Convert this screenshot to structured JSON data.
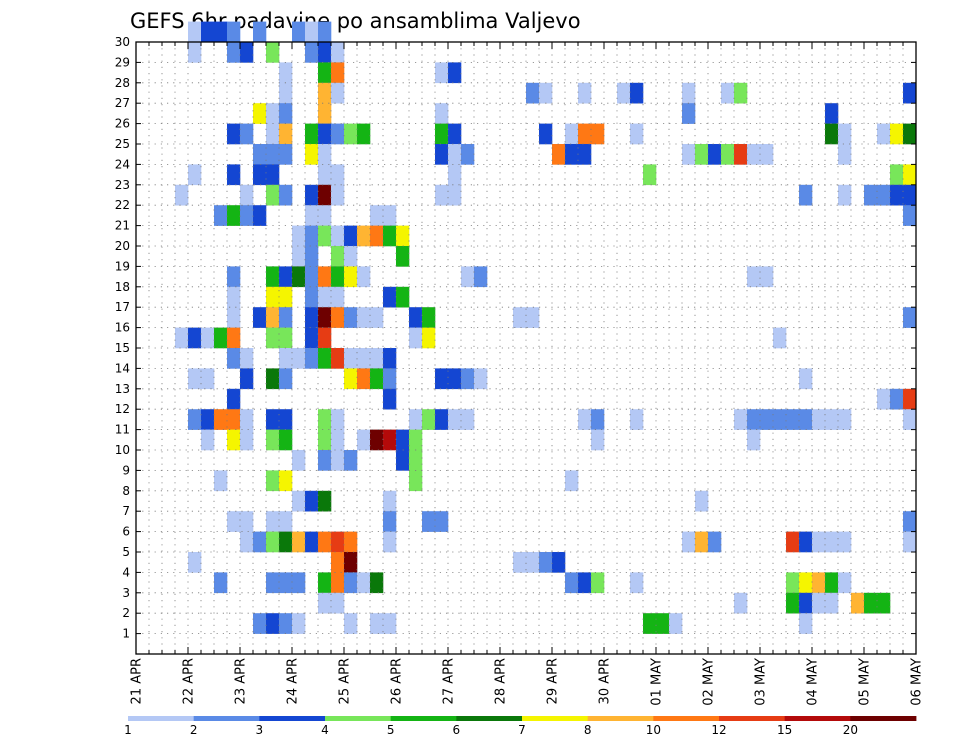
{
  "chart_data": {
    "type": "heatmap",
    "title": "GEFS 6hr padavine po ansamblima Valjevo",
    "x_tick_labels": [
      "21 APR",
      "22 APR",
      "23 APR",
      "24 APR",
      "25 APR",
      "26 APR",
      "27 APR",
      "28 APR",
      "29 APR",
      "30 APR",
      "01 MAY",
      "02 MAY",
      "03 MAY",
      "04 MAY",
      "05 MAY",
      "06 MAY"
    ],
    "y_tick_labels": [
      "1",
      "2",
      "3",
      "4",
      "5",
      "6",
      "7",
      "8",
      "9",
      "10",
      "11",
      "12",
      "13",
      "14",
      "15",
      "16",
      "17",
      "18",
      "19",
      "20",
      "21",
      "22",
      "23",
      "24",
      "25",
      "26",
      "27",
      "28",
      "29",
      "30"
    ],
    "xlim": [
      0,
      60
    ],
    "ylim": [
      0,
      30
    ],
    "grid": true,
    "legend": {
      "placement": "bottom",
      "levels": [
        "1",
        "2",
        "3",
        "4",
        "5",
        "6",
        "7",
        "8",
        "10",
        "12",
        "15",
        "20"
      ],
      "colors": [
        "#b4c8f5",
        "#5a8ae6",
        "#1446d2",
        "#78e65a",
        "#14b414",
        "#0a780a",
        "#f5f500",
        "#ffb432",
        "#ff7814",
        "#e63c14",
        "#b40a0a",
        "#6e0000"
      ]
    },
    "cells": [
      [
        4,
        30,
        0
      ],
      [
        5,
        30,
        2
      ],
      [
        6,
        30,
        2
      ],
      [
        7,
        30,
        1
      ],
      [
        9,
        30,
        1
      ],
      [
        12,
        30,
        1
      ],
      [
        13,
        30,
        0
      ],
      [
        14,
        30,
        1
      ],
      [
        4,
        29,
        0
      ],
      [
        7,
        29,
        1
      ],
      [
        8,
        29,
        2
      ],
      [
        10,
        29,
        3
      ],
      [
        13,
        29,
        1
      ],
      [
        14,
        29,
        2
      ],
      [
        15,
        29,
        0
      ],
      [
        11,
        28,
        0
      ],
      [
        14,
        28,
        4
      ],
      [
        15,
        28,
        8
      ],
      [
        23,
        28,
        0
      ],
      [
        24,
        28,
        2
      ],
      [
        11,
        27,
        0
      ],
      [
        14,
        27,
        7
      ],
      [
        15,
        27,
        0
      ],
      [
        30,
        27,
        1
      ],
      [
        31,
        27,
        0
      ],
      [
        34,
        27,
        0
      ],
      [
        37,
        27,
        0
      ],
      [
        38,
        27,
        2
      ],
      [
        42,
        27,
        0
      ],
      [
        45,
        27,
        0
      ],
      [
        46,
        27,
        3
      ],
      [
        59,
        27,
        2
      ],
      [
        9,
        26,
        6
      ],
      [
        10,
        26,
        0
      ],
      [
        11,
        26,
        1
      ],
      [
        14,
        26,
        7
      ],
      [
        23,
        26,
        0
      ],
      [
        42,
        26,
        1
      ],
      [
        53,
        26,
        2
      ],
      [
        7,
        25,
        2
      ],
      [
        8,
        25,
        1
      ],
      [
        10,
        25,
        0
      ],
      [
        11,
        25,
        7
      ],
      [
        13,
        25,
        4
      ],
      [
        14,
        25,
        2
      ],
      [
        15,
        25,
        1
      ],
      [
        16,
        25,
        3
      ],
      [
        17,
        25,
        4
      ],
      [
        23,
        25,
        4
      ],
      [
        24,
        25,
        2
      ],
      [
        31,
        25,
        2
      ],
      [
        33,
        25,
        0
      ],
      [
        34,
        25,
        8
      ],
      [
        35,
        25,
        8
      ],
      [
        38,
        25,
        0
      ],
      [
        53,
        25,
        5
      ],
      [
        54,
        25,
        0
      ],
      [
        57,
        25,
        0
      ],
      [
        58,
        25,
        6
      ],
      [
        59,
        25,
        5
      ],
      [
        9,
        24,
        1
      ],
      [
        10,
        24,
        1
      ],
      [
        11,
        24,
        1
      ],
      [
        13,
        24,
        6
      ],
      [
        14,
        24,
        0
      ],
      [
        23,
        24,
        2
      ],
      [
        24,
        24,
        0
      ],
      [
        25,
        24,
        1
      ],
      [
        32,
        24,
        8
      ],
      [
        33,
        24,
        2
      ],
      [
        34,
        24,
        2
      ],
      [
        42,
        24,
        0
      ],
      [
        43,
        24,
        3
      ],
      [
        44,
        24,
        2
      ],
      [
        45,
        24,
        3
      ],
      [
        46,
        24,
        9
      ],
      [
        47,
        24,
        0
      ],
      [
        48,
        24,
        0
      ],
      [
        54,
        24,
        0
      ],
      [
        4,
        23,
        0
      ],
      [
        7,
        23,
        2
      ],
      [
        9,
        23,
        2
      ],
      [
        10,
        23,
        2
      ],
      [
        14,
        23,
        0
      ],
      [
        15,
        23,
        0
      ],
      [
        24,
        23,
        0
      ],
      [
        39,
        23,
        3
      ],
      [
        58,
        23,
        3
      ],
      [
        59,
        23,
        6
      ],
      [
        3,
        22,
        0
      ],
      [
        8,
        22,
        0
      ],
      [
        10,
        22,
        3
      ],
      [
        11,
        22,
        1
      ],
      [
        13,
        22,
        2
      ],
      [
        14,
        22,
        11
      ],
      [
        15,
        22,
        0
      ],
      [
        23,
        22,
        0
      ],
      [
        24,
        22,
        0
      ],
      [
        51,
        22,
        1
      ],
      [
        54,
        22,
        0
      ],
      [
        56,
        22,
        1
      ],
      [
        57,
        22,
        1
      ],
      [
        58,
        22,
        2
      ],
      [
        59,
        22,
        2
      ],
      [
        6,
        21,
        1
      ],
      [
        7,
        21,
        4
      ],
      [
        8,
        21,
        1
      ],
      [
        9,
        21,
        2
      ],
      [
        13,
        21,
        0
      ],
      [
        14,
        21,
        0
      ],
      [
        18,
        21,
        0
      ],
      [
        19,
        21,
        0
      ],
      [
        59,
        21,
        1
      ],
      [
        12,
        20,
        0
      ],
      [
        13,
        20,
        1
      ],
      [
        14,
        20,
        3
      ],
      [
        15,
        20,
        0
      ],
      [
        16,
        20,
        2
      ],
      [
        17,
        20,
        7
      ],
      [
        18,
        20,
        8
      ],
      [
        19,
        20,
        4
      ],
      [
        20,
        20,
        6
      ],
      [
        12,
        19,
        0
      ],
      [
        13,
        19,
        1
      ],
      [
        15,
        19,
        3
      ],
      [
        16,
        19,
        0
      ],
      [
        20,
        19,
        4
      ],
      [
        7,
        18,
        1
      ],
      [
        10,
        18,
        4
      ],
      [
        11,
        18,
        2
      ],
      [
        12,
        18,
        5
      ],
      [
        13,
        18,
        1
      ],
      [
        14,
        18,
        8
      ],
      [
        15,
        18,
        4
      ],
      [
        16,
        18,
        6
      ],
      [
        17,
        18,
        0
      ],
      [
        25,
        18,
        0
      ],
      [
        26,
        18,
        1
      ],
      [
        47,
        18,
        0
      ],
      [
        48,
        18,
        0
      ],
      [
        7,
        17,
        0
      ],
      [
        10,
        17,
        6
      ],
      [
        11,
        17,
        6
      ],
      [
        13,
        17,
        1
      ],
      [
        14,
        17,
        0
      ],
      [
        15,
        17,
        0
      ],
      [
        19,
        17,
        2
      ],
      [
        20,
        17,
        4
      ],
      [
        7,
        16,
        0
      ],
      [
        9,
        16,
        2
      ],
      [
        10,
        16,
        7
      ],
      [
        11,
        16,
        1
      ],
      [
        13,
        16,
        2
      ],
      [
        14,
        16,
        11
      ],
      [
        15,
        16,
        8
      ],
      [
        16,
        16,
        1
      ],
      [
        17,
        16,
        0
      ],
      [
        18,
        16,
        0
      ],
      [
        21,
        16,
        2
      ],
      [
        22,
        16,
        4
      ],
      [
        29,
        16,
        0
      ],
      [
        30,
        16,
        0
      ],
      [
        59,
        16,
        1
      ],
      [
        3,
        15,
        0
      ],
      [
        4,
        15,
        2
      ],
      [
        5,
        15,
        0
      ],
      [
        6,
        15,
        4
      ],
      [
        7,
        15,
        8
      ],
      [
        10,
        15,
        3
      ],
      [
        11,
        15,
        3
      ],
      [
        13,
        15,
        2
      ],
      [
        14,
        15,
        9
      ],
      [
        21,
        15,
        0
      ],
      [
        22,
        15,
        6
      ],
      [
        49,
        15,
        0
      ],
      [
        7,
        14,
        1
      ],
      [
        8,
        14,
        0
      ],
      [
        11,
        14,
        0
      ],
      [
        12,
        14,
        0
      ],
      [
        13,
        14,
        1
      ],
      [
        14,
        14,
        4
      ],
      [
        15,
        14,
        9
      ],
      [
        16,
        14,
        0
      ],
      [
        17,
        14,
        0
      ],
      [
        18,
        14,
        0
      ],
      [
        19,
        14,
        2
      ],
      [
        4,
        13,
        0
      ],
      [
        5,
        13,
        0
      ],
      [
        8,
        13,
        2
      ],
      [
        10,
        13,
        5
      ],
      [
        11,
        13,
        1
      ],
      [
        16,
        13,
        6
      ],
      [
        17,
        13,
        8
      ],
      [
        18,
        13,
        4
      ],
      [
        19,
        13,
        1
      ],
      [
        23,
        13,
        2
      ],
      [
        24,
        13,
        2
      ],
      [
        25,
        13,
        1
      ],
      [
        26,
        13,
        0
      ],
      [
        51,
        13,
        0
      ],
      [
        7,
        12,
        2
      ],
      [
        19,
        12,
        2
      ],
      [
        57,
        12,
        0
      ],
      [
        58,
        12,
        1
      ],
      [
        59,
        12,
        9
      ],
      [
        4,
        11,
        1
      ],
      [
        5,
        11,
        2
      ],
      [
        6,
        11,
        8
      ],
      [
        7,
        11,
        8
      ],
      [
        8,
        11,
        0
      ],
      [
        10,
        11,
        2
      ],
      [
        11,
        11,
        2
      ],
      [
        14,
        11,
        3
      ],
      [
        15,
        11,
        0
      ],
      [
        21,
        11,
        0
      ],
      [
        22,
        11,
        3
      ],
      [
        23,
        11,
        2
      ],
      [
        24,
        11,
        0
      ],
      [
        25,
        11,
        0
      ],
      [
        34,
        11,
        0
      ],
      [
        35,
        11,
        1
      ],
      [
        38,
        11,
        0
      ],
      [
        46,
        11,
        0
      ],
      [
        47,
        11,
        1
      ],
      [
        48,
        11,
        1
      ],
      [
        49,
        11,
        1
      ],
      [
        50,
        11,
        1
      ],
      [
        51,
        11,
        1
      ],
      [
        52,
        11,
        0
      ],
      [
        53,
        11,
        0
      ],
      [
        54,
        11,
        0
      ],
      [
        59,
        11,
        0
      ],
      [
        5,
        10,
        0
      ],
      [
        7,
        10,
        6
      ],
      [
        8,
        10,
        0
      ],
      [
        10,
        10,
        3
      ],
      [
        11,
        10,
        4
      ],
      [
        14,
        10,
        3
      ],
      [
        15,
        10,
        0
      ],
      [
        17,
        10,
        0
      ],
      [
        18,
        10,
        11
      ],
      [
        19,
        10,
        10
      ],
      [
        20,
        10,
        2
      ],
      [
        21,
        10,
        3
      ],
      [
        35,
        10,
        0
      ],
      [
        47,
        10,
        0
      ],
      [
        12,
        9,
        0
      ],
      [
        14,
        9,
        1
      ],
      [
        15,
        9,
        0
      ],
      [
        16,
        9,
        1
      ],
      [
        20,
        9,
        2
      ],
      [
        21,
        9,
        3
      ],
      [
        6,
        8,
        0
      ],
      [
        10,
        8,
        3
      ],
      [
        11,
        8,
        6
      ],
      [
        21,
        8,
        3
      ],
      [
        33,
        8,
        0
      ],
      [
        12,
        7,
        0
      ],
      [
        13,
        7,
        2
      ],
      [
        14,
        7,
        5
      ],
      [
        19,
        7,
        0
      ],
      [
        43,
        7,
        0
      ],
      [
        7,
        6,
        0
      ],
      [
        8,
        6,
        0
      ],
      [
        10,
        6,
        0
      ],
      [
        11,
        6,
        0
      ],
      [
        19,
        6,
        1
      ],
      [
        22,
        6,
        1
      ],
      [
        23,
        6,
        1
      ],
      [
        59,
        6,
        1
      ],
      [
        8,
        5,
        0
      ],
      [
        9,
        5,
        1
      ],
      [
        10,
        5,
        3
      ],
      [
        11,
        5,
        5
      ],
      [
        12,
        5,
        7
      ],
      [
        13,
        5,
        2
      ],
      [
        14,
        5,
        8
      ],
      [
        15,
        5,
        9
      ],
      [
        16,
        5,
        8
      ],
      [
        19,
        5,
        0
      ],
      [
        42,
        5,
        0
      ],
      [
        43,
        5,
        7
      ],
      [
        44,
        5,
        1
      ],
      [
        50,
        5,
        9
      ],
      [
        51,
        5,
        2
      ],
      [
        52,
        5,
        0
      ],
      [
        53,
        5,
        0
      ],
      [
        54,
        5,
        0
      ],
      [
        59,
        5,
        0
      ],
      [
        4,
        4,
        0
      ],
      [
        15,
        4,
        8
      ],
      [
        16,
        4,
        11
      ],
      [
        29,
        4,
        0
      ],
      [
        30,
        4,
        0
      ],
      [
        31,
        4,
        1
      ],
      [
        32,
        4,
        2
      ],
      [
        6,
        3,
        1
      ],
      [
        10,
        3,
        1
      ],
      [
        11,
        3,
        1
      ],
      [
        12,
        3,
        1
      ],
      [
        14,
        3,
        4
      ],
      [
        15,
        3,
        8
      ],
      [
        16,
        3,
        1
      ],
      [
        17,
        3,
        0
      ],
      [
        18,
        3,
        5
      ],
      [
        33,
        3,
        1
      ],
      [
        34,
        3,
        2
      ],
      [
        35,
        3,
        3
      ],
      [
        38,
        3,
        0
      ],
      [
        50,
        3,
        3
      ],
      [
        51,
        3,
        6
      ],
      [
        52,
        3,
        7
      ],
      [
        53,
        3,
        4
      ],
      [
        54,
        3,
        0
      ],
      [
        14,
        2,
        0
      ],
      [
        15,
        2,
        0
      ],
      [
        46,
        2,
        0
      ],
      [
        50,
        2,
        4
      ],
      [
        51,
        2,
        2
      ],
      [
        52,
        2,
        0
      ],
      [
        53,
        2,
        0
      ],
      [
        55,
        2,
        7
      ],
      [
        56,
        2,
        4
      ],
      [
        57,
        2,
        4
      ],
      [
        9,
        1,
        1
      ],
      [
        10,
        1,
        2
      ],
      [
        11,
        1,
        1
      ],
      [
        12,
        1,
        0
      ],
      [
        16,
        1,
        0
      ],
      [
        18,
        1,
        0
      ],
      [
        19,
        1,
        0
      ],
      [
        39,
        1,
        4
      ],
      [
        40,
        1,
        4
      ],
      [
        41,
        1,
        0
      ],
      [
        51,
        1,
        0
      ]
    ]
  }
}
